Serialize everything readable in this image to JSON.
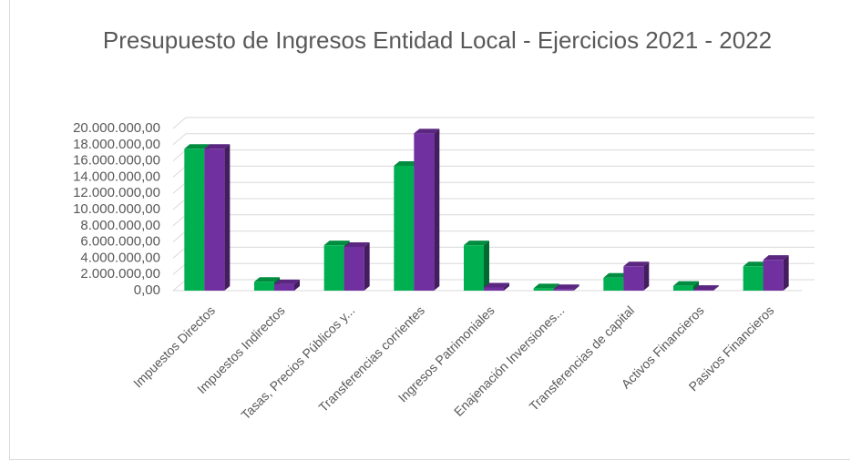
{
  "chart_data": {
    "type": "bar3d",
    "title": "Presupuesto de Ingresos Entidad Local - Ejercicios 2021 - 2022",
    "categories": [
      "Impuestos Directos",
      "Impuestos Indirectos",
      "Tasas, Precios Públicos y...",
      "Transferencias corrientes",
      "Ingresos Patrimoniales",
      "Enajenación Inversiones...",
      "Transferencias de capital",
      "Activos Financieros",
      "Pasivos Financieros"
    ],
    "series": [
      {
        "color": "#00b050",
        "values": [
          17500000,
          1100000,
          5600000,
          15400000,
          5600000,
          300000,
          1600000,
          600000,
          3000000
        ]
      },
      {
        "color": "#7030a0",
        "values": [
          17500000,
          800000,
          5400000,
          19400000,
          400000,
          200000,
          3000000,
          100000,
          3800000
        ]
      }
    ],
    "ylim": [
      0,
      20000000
    ],
    "yticks": [
      {
        "value": 0,
        "label": "0,00"
      },
      {
        "value": 2000000,
        "label": "2.000.000,00"
      },
      {
        "value": 4000000,
        "label": "4.000.000,00"
      },
      {
        "value": 6000000,
        "label": "6.000.000,00"
      },
      {
        "value": 8000000,
        "label": "8.000.000,00"
      },
      {
        "value": 10000000,
        "label": "10.000.000,00"
      },
      {
        "value": 12000000,
        "label": "12.000.000,00"
      },
      {
        "value": 14000000,
        "label": "14.000.000,00"
      },
      {
        "value": 16000000,
        "label": "16.000.000,00"
      },
      {
        "value": 18000000,
        "label": "18.000.000,00"
      },
      {
        "value": 20000000,
        "label": "20.000.000,00"
      }
    ],
    "grid": true
  }
}
